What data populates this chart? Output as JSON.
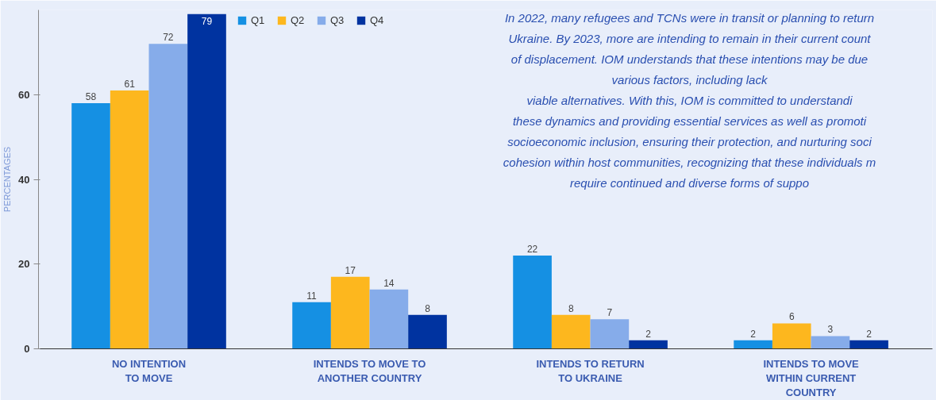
{
  "chart_data": {
    "type": "bar",
    "ylabel": "PERCENTAGES",
    "categories": [
      "NO INTENTION\nTO MOVE",
      "INTENDS TO MOVE TO\nANOTHER COUNTRY",
      "INTENDS TO RETURN\nTO UKRAINE",
      "INTENDS TO MOVE\nWITHIN CURRENT\nCOUNTRY"
    ],
    "series": [
      {
        "name": "Q1",
        "color": "#1590e3",
        "values": [
          58,
          11,
          22,
          2
        ]
      },
      {
        "name": "Q2",
        "color": "#fdb71e",
        "values": [
          61,
          17,
          8,
          6
        ]
      },
      {
        "name": "Q3",
        "color": "#86acea",
        "values": [
          72,
          14,
          7,
          3
        ]
      },
      {
        "name": "Q4",
        "color": "#0033a0",
        "values": [
          79,
          8,
          2,
          2
        ]
      }
    ],
    "ylim": [
      0,
      80
    ],
    "yticks": [
      0,
      20,
      40,
      60
    ],
    "data_labels": true,
    "legend": "top left",
    "grid": false,
    "annotations": [
      "In 2022, many refugees and TCNs were in transit or planning to return\nUkraine. By 2023, more are intending to remain in their current count\nof displacement. IOM understands that these intentions may be due\nvarious factors, including lack\nviable alternatives. With this, IOM is committed to understandi\nthese dynamics and providing essential services as well as promoti\nsocioeconomic inclusion, ensuring their protection, and nurturing soci\ncohesion within host communities, recognizing that these individuals m\nrequire continued and diverse forms of suppo"
    ]
  }
}
